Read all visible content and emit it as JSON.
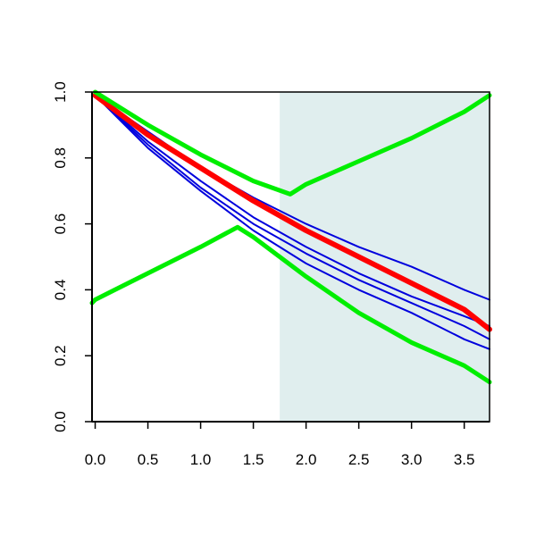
{
  "chart_data": {
    "type": "line",
    "title": "",
    "xlabel": "",
    "ylabel": "",
    "xlim": [
      -0.03,
      3.74
    ],
    "ylim": [
      0.0,
      1.0
    ],
    "x_ticks": [
      "0.0",
      "0.5",
      "1.0",
      "1.5",
      "2.0",
      "2.5",
      "3.0",
      "3.5"
    ],
    "y_ticks": [
      "0.0",
      "0.2",
      "0.4",
      "0.6",
      "0.8",
      "1.0"
    ],
    "grid": false,
    "shaded_region": {
      "x_start": 1.75,
      "x_end": 3.74,
      "color": "#e0eeee"
    },
    "series": [
      {
        "color": "#0000dd",
        "width": 2,
        "x": [
          0.0,
          0.5,
          1.0,
          1.5,
          2.0,
          2.5,
          3.0,
          3.5,
          3.74
        ],
        "y": [
          0.99,
          0.88,
          0.77,
          0.68,
          0.6,
          0.53,
          0.47,
          0.4,
          0.37
        ]
      },
      {
        "color": "#0000dd",
        "width": 2,
        "x": [
          0.0,
          0.5,
          1.0,
          1.5,
          2.0,
          2.5,
          3.0,
          3.5,
          3.74
        ],
        "y": [
          0.99,
          0.85,
          0.73,
          0.62,
          0.53,
          0.45,
          0.38,
          0.32,
          0.29
        ]
      },
      {
        "color": "#0000dd",
        "width": 2,
        "x": [
          0.0,
          0.5,
          1.0,
          1.5,
          2.0,
          2.5,
          3.0,
          3.5,
          3.74
        ],
        "y": [
          0.99,
          0.84,
          0.71,
          0.6,
          0.51,
          0.43,
          0.36,
          0.29,
          0.25
        ]
      },
      {
        "color": "#0000dd",
        "width": 2,
        "x": [
          0.0,
          0.5,
          1.0,
          1.5,
          2.0,
          2.5,
          3.0,
          3.5,
          3.74
        ],
        "y": [
          0.99,
          0.83,
          0.7,
          0.58,
          0.48,
          0.4,
          0.33,
          0.25,
          0.22
        ]
      },
      {
        "color": "#ff0000",
        "width": 6,
        "x": [
          0.0,
          0.5,
          1.0,
          1.5,
          2.0,
          2.5,
          3.0,
          3.5,
          3.74
        ],
        "y": [
          0.99,
          0.87,
          0.77,
          0.67,
          0.58,
          0.5,
          0.42,
          0.34,
          0.28
        ]
      },
      {
        "color": "#00ee00",
        "width": 5,
        "x": [
          0.0,
          0.5,
          1.0,
          1.5,
          1.85,
          2.0,
          2.5,
          3.0,
          3.5,
          3.74
        ],
        "y": [
          1.0,
          0.9,
          0.81,
          0.73,
          0.69,
          0.72,
          0.79,
          0.86,
          0.94,
          0.99
        ]
      },
      {
        "color": "#00ee00",
        "width": 5,
        "x": [
          -0.03,
          0.0,
          0.5,
          1.0,
          1.35,
          1.5,
          2.0,
          2.5,
          3.0,
          3.5,
          3.74
        ],
        "y": [
          0.36,
          0.37,
          0.45,
          0.53,
          0.59,
          0.56,
          0.44,
          0.33,
          0.24,
          0.17,
          0.12
        ]
      }
    ]
  }
}
